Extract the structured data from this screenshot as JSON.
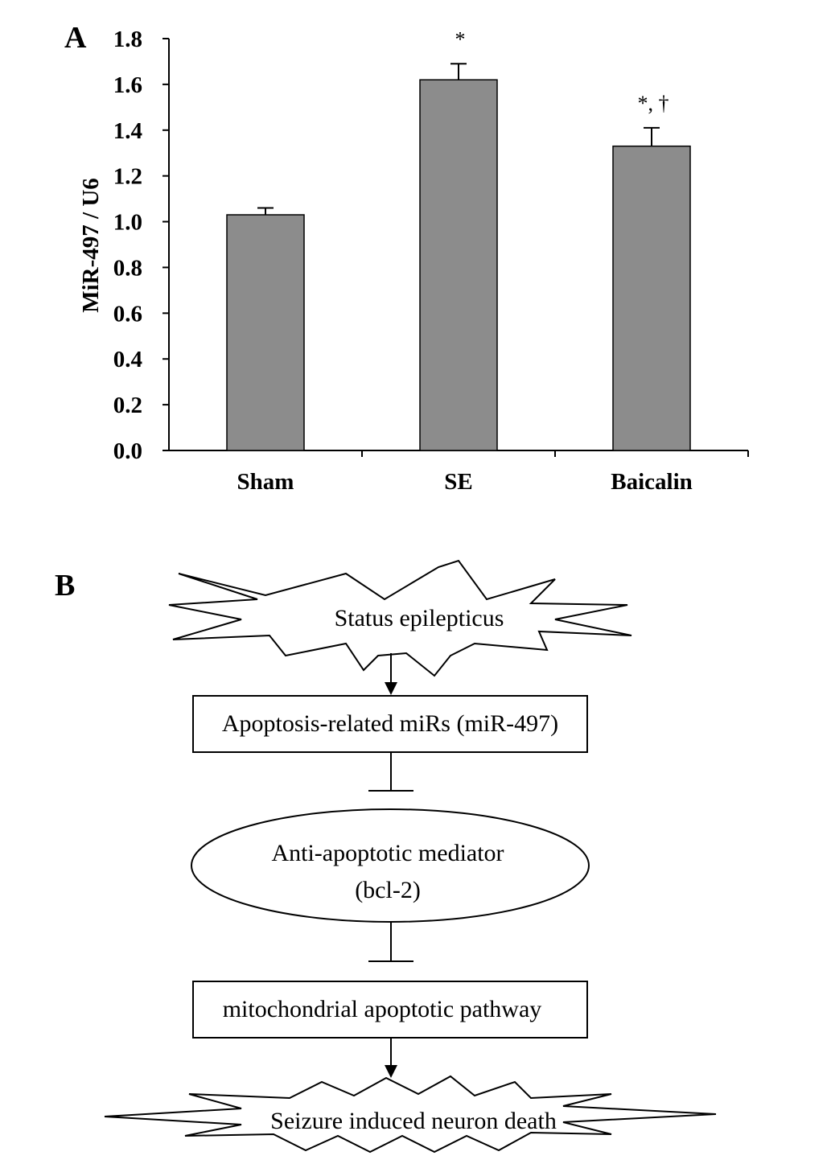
{
  "panels": {
    "a_label": "A",
    "b_label": "B"
  },
  "chart_data": {
    "type": "bar",
    "categories": [
      "Sham",
      "SE",
      "Baicalin"
    ],
    "values": [
      1.03,
      1.62,
      1.33
    ],
    "errors": [
      0.03,
      0.07,
      0.08
    ],
    "annotations": [
      "",
      "*",
      "*, †"
    ],
    "ylabel": "MiR-497 / U6",
    "xlabel": "",
    "ylim": [
      0,
      1.8
    ],
    "yticks": [
      "0.0",
      "0.2",
      "0.4",
      "0.6",
      "0.8",
      "1.0",
      "1.2",
      "1.4",
      "1.6",
      "1.8"
    ],
    "grid": false,
    "bar_color": "#8c8c8c"
  },
  "diagram": {
    "nodes": [
      {
        "id": "status",
        "shape": "burst",
        "text": "Status epilepticus"
      },
      {
        "id": "mirs",
        "shape": "rect",
        "text": "Apoptosis-related miRs (miR-497)"
      },
      {
        "id": "bcl2",
        "shape": "ellipse",
        "text": "Anti-apoptotic mediator",
        "text2": "(bcl-2)"
      },
      {
        "id": "mito",
        "shape": "rect",
        "text": "mitochondrial apoptotic pathway"
      },
      {
        "id": "death",
        "shape": "burst",
        "text": "Seizure induced neuron death"
      }
    ],
    "edges": [
      {
        "from": "status",
        "to": "mirs",
        "type": "arrow"
      },
      {
        "from": "mirs",
        "to": "bcl2",
        "type": "inhibit"
      },
      {
        "from": "bcl2",
        "to": "mito",
        "type": "inhibit"
      },
      {
        "from": "mito",
        "to": "death",
        "type": "arrow"
      }
    ]
  }
}
